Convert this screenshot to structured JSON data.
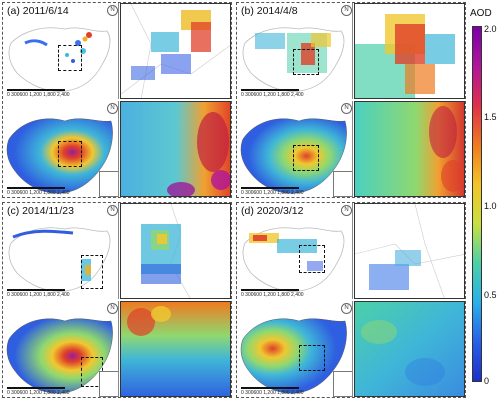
{
  "figure": {
    "panels": [
      {
        "id": "a",
        "title": "(a) 2011/6/14",
        "scale_text": "0 300600   1,200   1,800   2,400",
        "north": "N",
        "top_zoom": "partial",
        "bottom_zoom": "full"
      },
      {
        "id": "b",
        "title": "(b) 2014/4/8",
        "scale_text": "0 300600   1,200   1,800   2,400",
        "north": "N",
        "top_zoom": "partial",
        "bottom_zoom": "full"
      },
      {
        "id": "c",
        "title": "(c) 2014/11/23",
        "scale_text": "0 300600   1,200   1,800   2,400",
        "north": "N",
        "top_zoom": "partial",
        "bottom_zoom": "full"
      },
      {
        "id": "d",
        "title": "(d) 2020/3/12",
        "scale_text": "0 300600   1,200   1,800   2,400",
        "north": "N",
        "top_zoom": "sparse",
        "bottom_zoom": "full"
      }
    ],
    "colorbar": {
      "title": "AOD",
      "ticks": [
        "2.0",
        "1.5",
        "1.0",
        "0.5",
        "0"
      ],
      "gradient_stops": [
        "#7a00a8",
        "#b0159a",
        "#e0304a",
        "#f07a20",
        "#f2c428",
        "#c8e040",
        "#4cd0a8",
        "#28b0e8",
        "#2860e8",
        "#1a30c8"
      ]
    },
    "map_colors": {
      "low": "#2f5fe0",
      "mid_low": "#3fb6d8",
      "mid": "#8fd870",
      "mid_high": "#f0c830",
      "high": "#e04028",
      "very_high": "#9a1c9a"
    }
  }
}
